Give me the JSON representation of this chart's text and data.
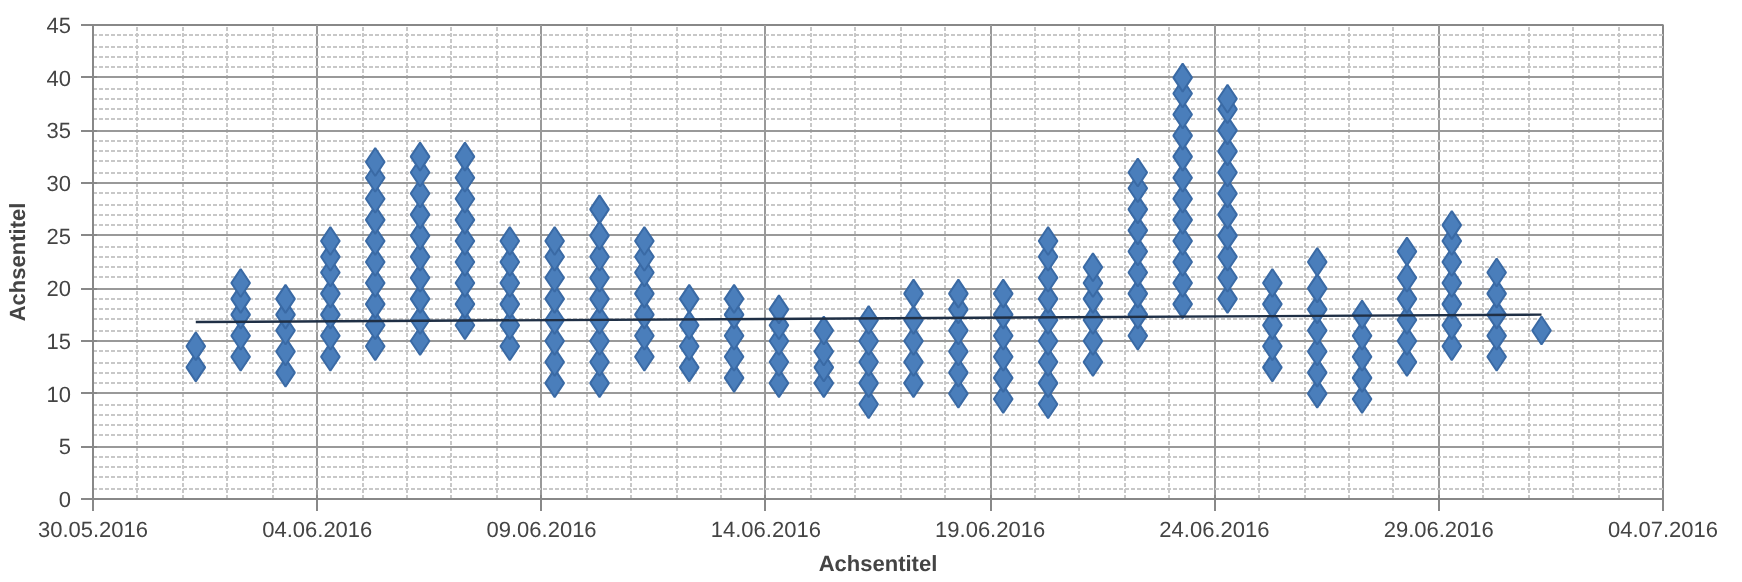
{
  "chart_data": {
    "type": "scatter",
    "xlabel": "Achsentitel",
    "ylabel": "Achsentitel",
    "marker": "diamond",
    "grid": true,
    "xlim": [
      "2016-05-30",
      "2016-07-04"
    ],
    "xticks": [
      {
        "value": "2016-05-30",
        "label": "30.05.2016"
      },
      {
        "value": "2016-06-04",
        "label": "04.06.2016"
      },
      {
        "value": "2016-06-09",
        "label": "09.06.2016"
      },
      {
        "value": "2016-06-14",
        "label": "14.06.2016"
      },
      {
        "value": "2016-06-19",
        "label": "19.06.2016"
      },
      {
        "value": "2016-06-24",
        "label": "24.06.2016"
      },
      {
        "value": "2016-06-29",
        "label": "29.06.2016"
      },
      {
        "value": "2016-07-04",
        "label": "04.07.2016"
      }
    ],
    "ylim": [
      0,
      45
    ],
    "yticks": [
      0,
      5,
      10,
      15,
      20,
      25,
      30,
      35,
      40,
      45
    ],
    "series": [
      {
        "color": "#4a7ebb",
        "x": [
          "2016-06-01T07:00",
          "2016-06-01T07:00"
        ],
        "values": [
          12.5,
          14.5
        ]
      },
      {
        "color": "#4a7ebb",
        "x": [
          "2016-06-02T07:00",
          "2016-06-02T07:00",
          "2016-06-02T07:00",
          "2016-06-02T07:00",
          "2016-06-02T07:00"
        ],
        "values": [
          13.5,
          15.5,
          17.5,
          19,
          20.5
        ]
      },
      {
        "color": "#4a7ebb",
        "x": [
          "2016-06-03T07:00",
          "2016-06-03T07:00",
          "2016-06-03T07:00",
          "2016-06-03T07:00",
          "2016-06-03T07:00"
        ],
        "values": [
          12,
          14,
          16,
          17.5,
          19
        ]
      },
      {
        "color": "#4a7ebb",
        "x": [
          "2016-06-04T07:00",
          "2016-06-04T07:00",
          "2016-06-04T07:00",
          "2016-06-04T07:00",
          "2016-06-04T07:00",
          "2016-06-04T07:00",
          "2016-06-04T07:00"
        ],
        "values": [
          13.5,
          15.5,
          17.5,
          19.5,
          21.5,
          23,
          24.5
        ]
      },
      {
        "color": "#4a7ebb",
        "x": [
          "2016-06-05T07:00",
          "2016-06-05T07:00",
          "2016-06-05T07:00",
          "2016-06-05T07:00",
          "2016-06-05T07:00",
          "2016-06-05T07:00",
          "2016-06-05T07:00",
          "2016-06-05T07:00",
          "2016-06-05T07:00",
          "2016-06-05T07:00"
        ],
        "values": [
          14.5,
          16.5,
          18.5,
          20.5,
          22.5,
          24.5,
          26.5,
          28.5,
          30.5,
          32
        ]
      },
      {
        "color": "#4a7ebb",
        "x": [
          "2016-06-06T07:00",
          "2016-06-06T07:00",
          "2016-06-06T07:00",
          "2016-06-06T07:00",
          "2016-06-06T07:00",
          "2016-06-06T07:00",
          "2016-06-06T07:00",
          "2016-06-06T07:00",
          "2016-06-06T07:00",
          "2016-06-06T07:00"
        ],
        "values": [
          15,
          17,
          19,
          21,
          23,
          25,
          27,
          29,
          31,
          32.5
        ]
      },
      {
        "color": "#4a7ebb",
        "x": [
          "2016-06-07T07:00",
          "2016-06-07T07:00",
          "2016-06-07T07:00",
          "2016-06-07T07:00",
          "2016-06-07T07:00",
          "2016-06-07T07:00",
          "2016-06-07T07:00",
          "2016-06-07T07:00",
          "2016-06-07T07:00"
        ],
        "values": [
          16.5,
          18.5,
          20.5,
          22.5,
          24.5,
          26.5,
          28.5,
          30.5,
          32.5
        ]
      },
      {
        "color": "#4a7ebb",
        "x": [
          "2016-06-08T07:00",
          "2016-06-08T07:00",
          "2016-06-08T07:00",
          "2016-06-08T07:00",
          "2016-06-08T07:00",
          "2016-06-08T07:00"
        ],
        "values": [
          14.5,
          16.5,
          18.5,
          20.5,
          22.5,
          24.5
        ]
      },
      {
        "color": "#4a7ebb",
        "x": [
          "2016-06-09T07:00",
          "2016-06-09T07:00",
          "2016-06-09T07:00",
          "2016-06-09T07:00",
          "2016-06-09T07:00",
          "2016-06-09T07:00",
          "2016-06-09T07:00",
          "2016-06-09T07:00"
        ],
        "values": [
          11,
          13,
          15,
          17,
          19,
          21,
          23,
          24.5
        ]
      },
      {
        "color": "#4a7ebb",
        "x": [
          "2016-06-10T07:00",
          "2016-06-10T07:00",
          "2016-06-10T07:00",
          "2016-06-10T07:00",
          "2016-06-10T07:00",
          "2016-06-10T07:00",
          "2016-06-10T07:00",
          "2016-06-10T07:00",
          "2016-06-10T07:00"
        ],
        "values": [
          11,
          13,
          15,
          17,
          19,
          21,
          23,
          25,
          27.5
        ]
      },
      {
        "color": "#4a7ebb",
        "x": [
          "2016-06-11T07:00",
          "2016-06-11T07:00",
          "2016-06-11T07:00",
          "2016-06-11T07:00",
          "2016-06-11T07:00",
          "2016-06-11T07:00",
          "2016-06-11T07:00"
        ],
        "values": [
          13.5,
          15.5,
          17.5,
          19.5,
          21.5,
          23,
          24.5
        ]
      },
      {
        "color": "#4a7ebb",
        "x": [
          "2016-06-12T07:00",
          "2016-06-12T07:00",
          "2016-06-12T07:00",
          "2016-06-12T07:00"
        ],
        "values": [
          12.5,
          14.5,
          16.5,
          19
        ]
      },
      {
        "color": "#4a7ebb",
        "x": [
          "2016-06-13T07:00",
          "2016-06-13T07:00",
          "2016-06-13T07:00",
          "2016-06-13T07:00",
          "2016-06-13T07:00"
        ],
        "values": [
          11.5,
          13.5,
          15.5,
          17.5,
          19
        ]
      },
      {
        "color": "#4a7ebb",
        "x": [
          "2016-06-14T07:00",
          "2016-06-14T07:00",
          "2016-06-14T07:00",
          "2016-06-14T07:00",
          "2016-06-14T07:00"
        ],
        "values": [
          11,
          13,
          15,
          16.5,
          18
        ]
      },
      {
        "color": "#4a7ebb",
        "x": [
          "2016-06-15T07:00",
          "2016-06-15T07:00",
          "2016-06-15T07:00",
          "2016-06-15T07:00"
        ],
        "values": [
          11,
          12.5,
          14,
          16
        ]
      },
      {
        "color": "#4a7ebb",
        "x": [
          "2016-06-16T07:00",
          "2016-06-16T07:00",
          "2016-06-16T07:00",
          "2016-06-16T07:00",
          "2016-06-16T07:00"
        ],
        "values": [
          9,
          11,
          13,
          15,
          17
        ]
      },
      {
        "color": "#4a7ebb",
        "x": [
          "2016-06-17T07:00",
          "2016-06-17T07:00",
          "2016-06-17T07:00",
          "2016-06-17T07:00",
          "2016-06-17T07:00"
        ],
        "values": [
          11,
          13,
          15,
          17,
          19.5
        ]
      },
      {
        "color": "#4a7ebb",
        "x": [
          "2016-06-18T07:00",
          "2016-06-18T07:00",
          "2016-06-18T07:00",
          "2016-06-18T07:00",
          "2016-06-18T07:00",
          "2016-06-18T07:00"
        ],
        "values": [
          10,
          12,
          14,
          16,
          18,
          19.5
        ]
      },
      {
        "color": "#4a7ebb",
        "x": [
          "2016-06-19T07:00",
          "2016-06-19T07:00",
          "2016-06-19T07:00",
          "2016-06-19T07:00",
          "2016-06-19T07:00",
          "2016-06-19T07:00"
        ],
        "values": [
          9.5,
          11.5,
          13.5,
          15.5,
          17.5,
          19.5
        ]
      },
      {
        "color": "#4a7ebb",
        "x": [
          "2016-06-20T07:00",
          "2016-06-20T07:00",
          "2016-06-20T07:00",
          "2016-06-20T07:00",
          "2016-06-20T07:00",
          "2016-06-20T07:00",
          "2016-06-20T07:00",
          "2016-06-20T07:00",
          "2016-06-20T07:00"
        ],
        "values": [
          9,
          11,
          13,
          15,
          17,
          19,
          21,
          23,
          24.5
        ]
      },
      {
        "color": "#4a7ebb",
        "x": [
          "2016-06-21T07:00",
          "2016-06-21T07:00",
          "2016-06-21T07:00",
          "2016-06-21T07:00",
          "2016-06-21T07:00",
          "2016-06-21T07:00"
        ],
        "values": [
          13,
          15,
          17,
          19,
          20.5,
          22
        ]
      },
      {
        "color": "#4a7ebb",
        "x": [
          "2016-06-22T07:00",
          "2016-06-22T07:00",
          "2016-06-22T07:00",
          "2016-06-22T07:00",
          "2016-06-22T07:00",
          "2016-06-22T07:00",
          "2016-06-22T07:00",
          "2016-06-22T07:00",
          "2016-06-22T07:00"
        ],
        "values": [
          15.5,
          17.5,
          19.5,
          21.5,
          23.5,
          25.5,
          27.5,
          29.5,
          31
        ]
      },
      {
        "color": "#4a7ebb",
        "x": [
          "2016-06-23T07:00",
          "2016-06-23T07:00",
          "2016-06-23T07:00",
          "2016-06-23T07:00",
          "2016-06-23T07:00",
          "2016-06-23T07:00",
          "2016-06-23T07:00",
          "2016-06-23T07:00",
          "2016-06-23T07:00",
          "2016-06-23T07:00",
          "2016-06-23T07:00",
          "2016-06-23T07:00"
        ],
        "values": [
          18.5,
          20.5,
          22.5,
          24.5,
          26.5,
          28.5,
          30.5,
          32.5,
          34.5,
          36.5,
          38.5,
          40
        ]
      },
      {
        "color": "#4a7ebb",
        "x": [
          "2016-06-24T07:00",
          "2016-06-24T07:00",
          "2016-06-24T07:00",
          "2016-06-24T07:00",
          "2016-06-24T07:00",
          "2016-06-24T07:00",
          "2016-06-24T07:00",
          "2016-06-24T07:00",
          "2016-06-24T07:00",
          "2016-06-24T07:00",
          "2016-06-24T07:00"
        ],
        "values": [
          19,
          21,
          23,
          25,
          27,
          29,
          31,
          33,
          35,
          37,
          38
        ]
      },
      {
        "color": "#4a7ebb",
        "x": [
          "2016-06-25T07:00",
          "2016-06-25T07:00",
          "2016-06-25T07:00",
          "2016-06-25T07:00",
          "2016-06-25T07:00"
        ],
        "values": [
          12.5,
          14.5,
          16.5,
          18.5,
          20.5
        ]
      },
      {
        "color": "#4a7ebb",
        "x": [
          "2016-06-26T07:00",
          "2016-06-26T07:00",
          "2016-06-26T07:00",
          "2016-06-26T07:00",
          "2016-06-26T07:00",
          "2016-06-26T07:00",
          "2016-06-26T07:00"
        ],
        "values": [
          10,
          12,
          14,
          16,
          18,
          20,
          22.5
        ]
      },
      {
        "color": "#4a7ebb",
        "x": [
          "2016-06-27T07:00",
          "2016-06-27T07:00",
          "2016-06-27T07:00",
          "2016-06-27T07:00",
          "2016-06-27T07:00"
        ],
        "values": [
          9.5,
          11.5,
          13.5,
          15.5,
          17.5
        ]
      },
      {
        "color": "#4a7ebb",
        "x": [
          "2016-06-28T07:00",
          "2016-06-28T07:00",
          "2016-06-28T07:00",
          "2016-06-28T07:00",
          "2016-06-28T07:00",
          "2016-06-28T07:00"
        ],
        "values": [
          13,
          15,
          17,
          19,
          21,
          23.5
        ]
      },
      {
        "color": "#4a7ebb",
        "x": [
          "2016-06-29T07:00",
          "2016-06-29T07:00",
          "2016-06-29T07:00",
          "2016-06-29T07:00",
          "2016-06-29T07:00",
          "2016-06-29T07:00",
          "2016-06-29T07:00"
        ],
        "values": [
          14.5,
          16.5,
          18.5,
          20.5,
          22.5,
          24.5,
          26
        ]
      },
      {
        "color": "#4a7ebb",
        "x": [
          "2016-06-30T07:00",
          "2016-06-30T07:00",
          "2016-06-30T07:00",
          "2016-06-30T07:00",
          "2016-06-30T07:00"
        ],
        "values": [
          13.5,
          15.5,
          17.5,
          19.5,
          21.5
        ]
      },
      {
        "color": "#4a7ebb",
        "x": [
          "2016-07-01T07:00"
        ],
        "values": [
          16
        ]
      },
      {
        "type": "line",
        "marker": "none",
        "color": "#1f2f45",
        "x": [
          "2016-06-01T07:00",
          "2016-07-01T07:00"
        ],
        "values": [
          16.8,
          17.5
        ]
      }
    ]
  }
}
